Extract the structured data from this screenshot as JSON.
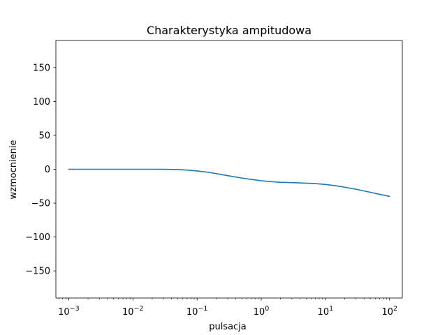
{
  "chart_data": {
    "type": "line",
    "title": "Charakterystyka ampitudowa",
    "xlabel": "pulsacja",
    "ylabel": "wzmocnienie",
    "xscale": "log",
    "xlim": [
      0.00063,
      158
    ],
    "ylim": [
      -190,
      190
    ],
    "grid": false,
    "legend": "none",
    "x_ticks": [
      {
        "value": 0.001,
        "base": "10",
        "exp": "−3"
      },
      {
        "value": 0.01,
        "base": "10",
        "exp": "−2"
      },
      {
        "value": 0.1,
        "base": "10",
        "exp": "−1"
      },
      {
        "value": 1,
        "base": "10",
        "exp": "0"
      },
      {
        "value": 10,
        "base": "10",
        "exp": "1"
      },
      {
        "value": 100,
        "base": "10",
        "exp": "2"
      }
    ],
    "y_ticks": [
      {
        "value": 150,
        "label": "150"
      },
      {
        "value": 100,
        "label": "100"
      },
      {
        "value": 50,
        "label": "50"
      },
      {
        "value": 0,
        "label": "0"
      },
      {
        "value": -50,
        "label": "−50"
      },
      {
        "value": -100,
        "label": "−100"
      },
      {
        "value": -150,
        "label": "−150"
      }
    ],
    "series": [
      {
        "color": "#1f77b4",
        "x": [
          0.001,
          0.003,
          0.01,
          0.02,
          0.03,
          0.05,
          0.07,
          0.1,
          0.15,
          0.2,
          0.3,
          0.5,
          0.7,
          1,
          1.5,
          2,
          3,
          5,
          7,
          10,
          15,
          20,
          30,
          50,
          70,
          100
        ],
        "y": [
          0,
          0,
          0,
          0,
          -0.1,
          -0.4,
          -1.2,
          -2.5,
          -4.5,
          -6.5,
          -9.5,
          -13,
          -15,
          -17,
          -18.5,
          -19.2,
          -19.8,
          -20.5,
          -21.2,
          -22.5,
          -24.5,
          -26.5,
          -29.5,
          -34,
          -37,
          -40
        ]
      }
    ]
  }
}
